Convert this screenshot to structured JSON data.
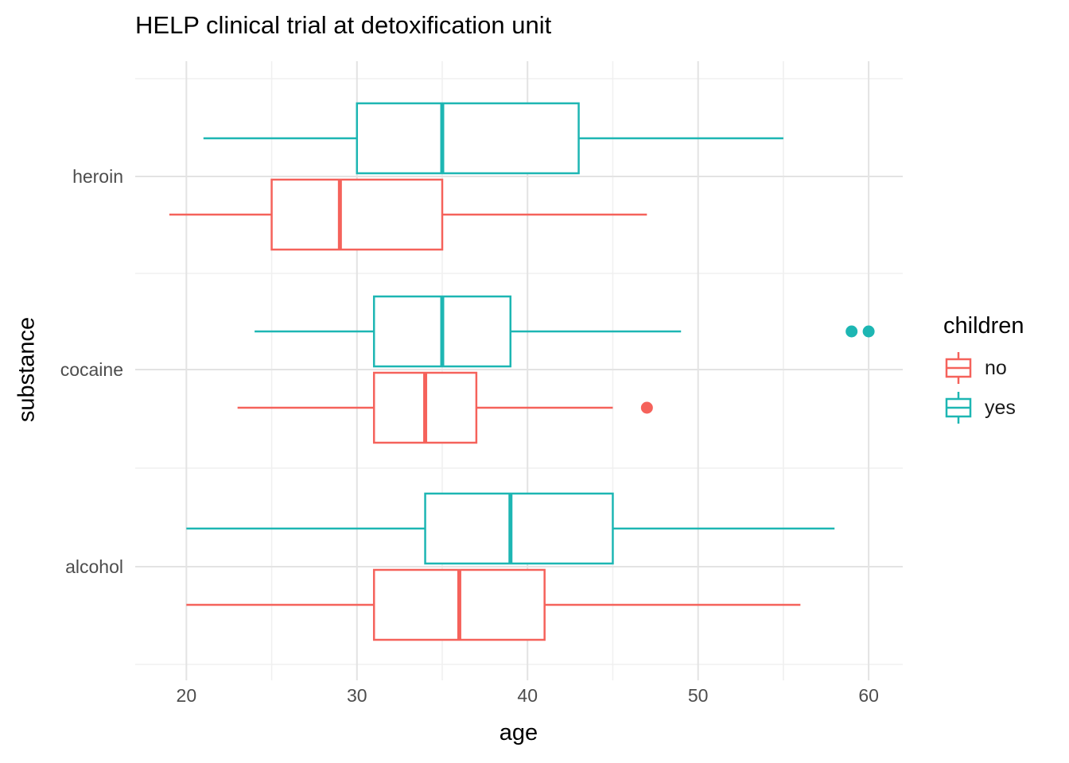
{
  "chart_data": {
    "type": "boxplot",
    "orientation": "horizontal",
    "title": "HELP clinical trial at detoxification unit",
    "xlabel": "age",
    "ylabel": "substance",
    "x_ticks": [
      20,
      30,
      40,
      50,
      60
    ],
    "x_range": [
      17,
      62
    ],
    "categories": [
      "heroin",
      "cocaine",
      "alcohol"
    ],
    "legend": {
      "title": "children",
      "entries": [
        {
          "value": "no",
          "color": "#F5625B"
        },
        {
          "value": "yes",
          "color": "#1DB6B3"
        }
      ]
    },
    "groups": [
      {
        "substance": "heroin",
        "boxes": [
          {
            "children": "yes",
            "min": 21,
            "q1": 30,
            "median": 35,
            "q3": 43,
            "max": 55,
            "outliers": []
          },
          {
            "children": "no",
            "min": 19,
            "q1": 25,
            "median": 29,
            "q3": 35,
            "max": 47,
            "outliers": []
          }
        ]
      },
      {
        "substance": "cocaine",
        "boxes": [
          {
            "children": "yes",
            "min": 24,
            "q1": 31,
            "median": 35,
            "q3": 39,
            "max": 49,
            "outliers": [
              59,
              60
            ]
          },
          {
            "children": "no",
            "min": 23,
            "q1": 31,
            "median": 34,
            "q3": 37,
            "max": 45,
            "outliers": [
              47
            ]
          }
        ]
      },
      {
        "substance": "alcohol",
        "boxes": [
          {
            "children": "yes",
            "min": 20,
            "q1": 34,
            "median": 39,
            "q3": 45,
            "max": 58,
            "outliers": []
          },
          {
            "children": "no",
            "min": 20,
            "q1": 31,
            "median": 36,
            "q3": 41,
            "max": 56,
            "outliers": []
          }
        ]
      }
    ],
    "grid": {
      "major_color": "#E3E3E3",
      "minor_color": "#F0F0F0"
    },
    "text_colors": {
      "axis_text": "#4D4D4D",
      "title": "#000000"
    }
  }
}
